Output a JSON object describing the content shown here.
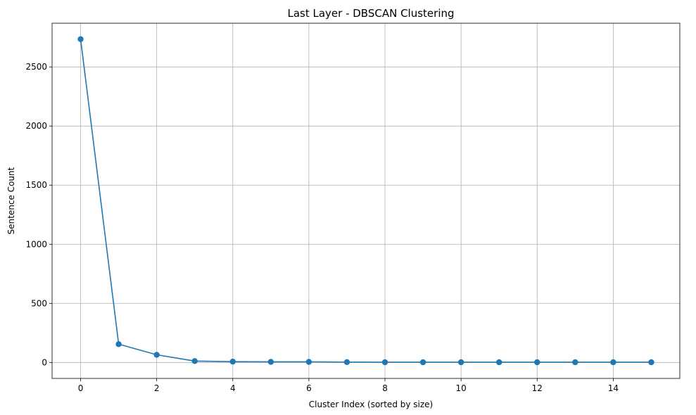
{
  "chart_data": {
    "type": "line",
    "title": "Last Layer - DBSCAN Clustering",
    "xlabel": "Cluster Index (sorted by size)",
    "ylabel": "Sentence Count",
    "xlim": [
      -0.75,
      15.75
    ],
    "ylim": [
      -135,
      2870
    ],
    "xticks": [
      0,
      2,
      4,
      6,
      8,
      10,
      12,
      14
    ],
    "yticks": [
      0,
      500,
      1000,
      1500,
      2000,
      2500
    ],
    "grid": true,
    "marker": "circle",
    "series": [
      {
        "x": [
          0,
          1,
          2,
          3,
          4,
          5,
          6,
          7,
          8,
          9,
          10,
          11,
          12,
          13,
          14,
          15
        ],
        "values": [
          2735,
          155,
          65,
          12,
          7,
          5,
          5,
          3,
          2,
          2,
          2,
          2,
          2,
          2,
          2,
          2
        ],
        "color": "#1f77b4"
      }
    ]
  }
}
